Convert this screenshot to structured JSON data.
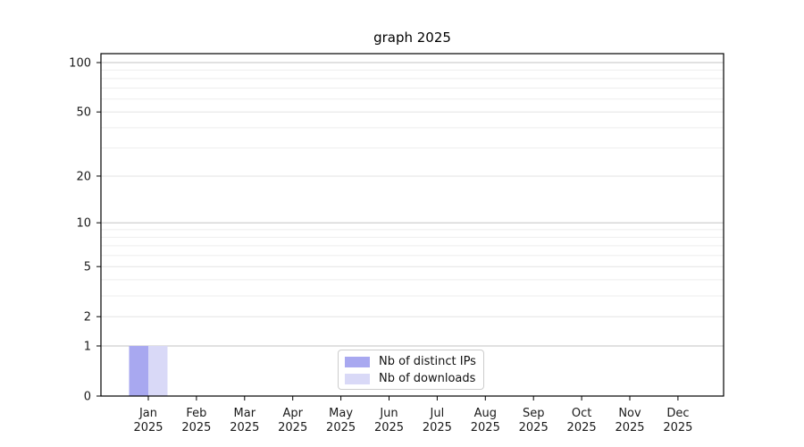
{
  "page": {
    "background": "#ffffff"
  },
  "chart_data": {
    "type": "bar",
    "title": "graph 2025",
    "xlabel": "",
    "ylabel": "",
    "categories": [
      "Jan",
      "Feb",
      "Mar",
      "Apr",
      "May",
      "Jun",
      "Jul",
      "Aug",
      "Sep",
      "Oct",
      "Nov",
      "Dec"
    ],
    "category_year": "2025",
    "series": [
      {
        "name": "Nb of distinct IPs",
        "color": "#a8a8f0",
        "values": [
          1,
          0,
          0,
          0,
          0,
          0,
          0,
          0,
          0,
          0,
          0,
          0
        ]
      },
      {
        "name": "Nb of downloads",
        "color": "#d9d9f7",
        "values": [
          1,
          0,
          0,
          0,
          0,
          0,
          0,
          0,
          0,
          0,
          0,
          0
        ]
      }
    ],
    "yscale": "log10(value+1)",
    "ylim": [
      0,
      113
    ],
    "y_ticks": [
      0,
      1,
      2,
      5,
      10,
      20,
      50,
      100
    ],
    "y_minor_gridlines": [
      3,
      4,
      6,
      7,
      8,
      9,
      30,
      40,
      60,
      70,
      80,
      90
    ],
    "y_emphasized_gridlines": [
      1,
      10,
      100
    ],
    "grid": "horizontal",
    "legend_position": "bottom-center",
    "colors": {
      "emphasized_grid": "#c3c3c3",
      "labeled_grid": "#e3e3e3",
      "minor_grid": "#eeeeee",
      "spine": "#000000",
      "tick_text": "#1a1a1a",
      "legend_border": "#cccccc"
    }
  }
}
